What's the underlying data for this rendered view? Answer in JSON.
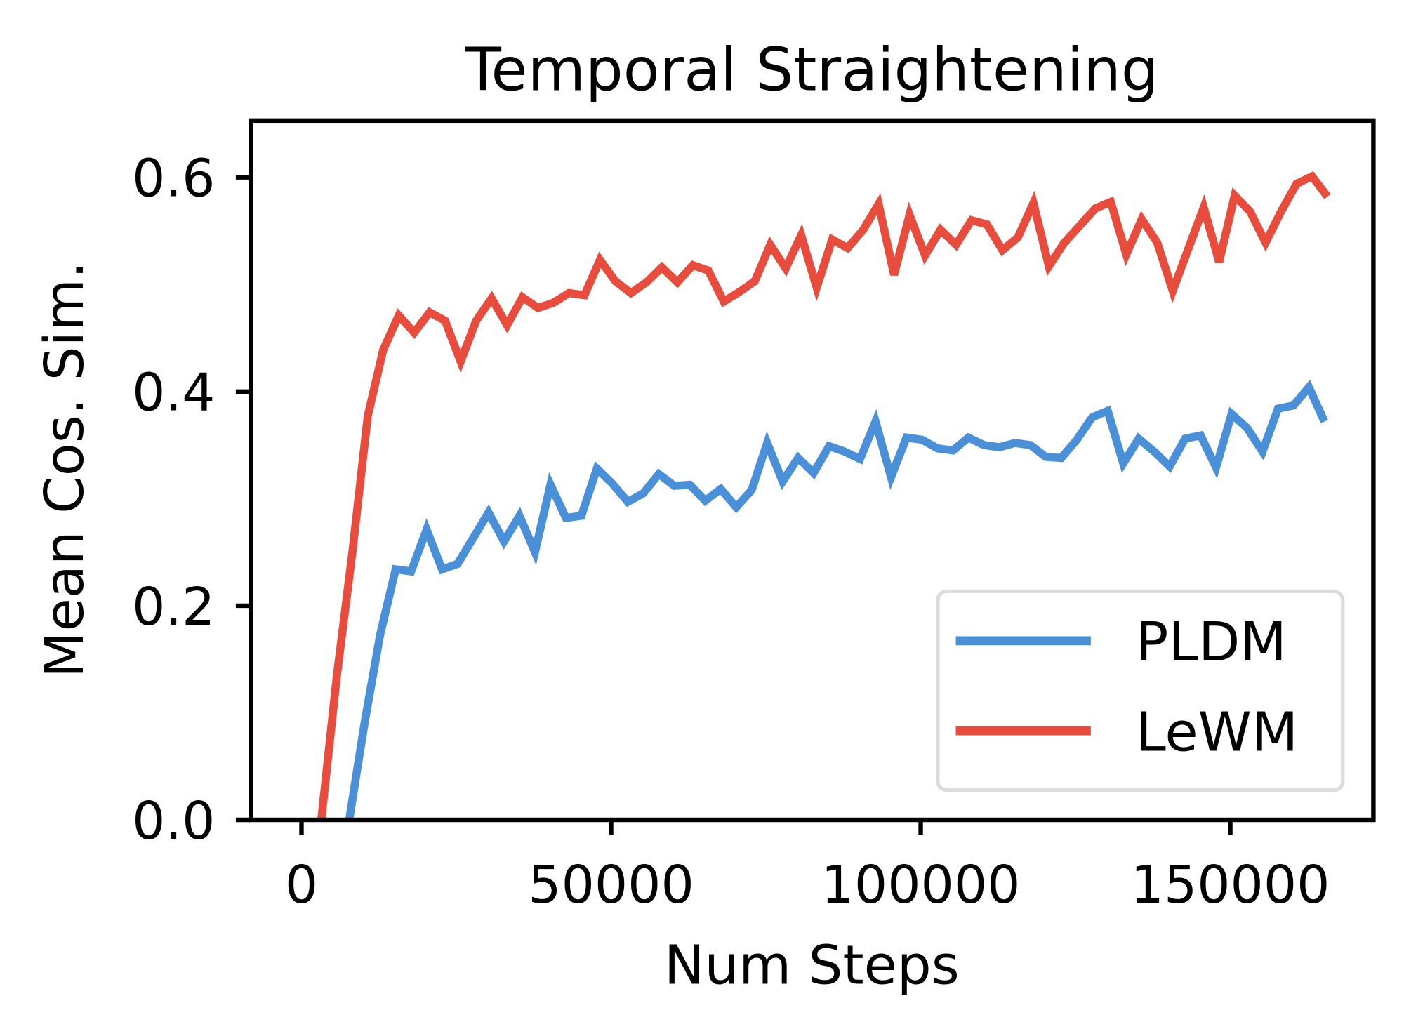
{
  "chart_data": {
    "type": "line",
    "title": "Temporal Straightening",
    "xlabel": "Num Steps",
    "ylabel": "Mean Cos. Sim.",
    "xlim": [
      -8140,
      173110
    ],
    "ylim": [
      0,
      0.653
    ],
    "xticks": [
      0,
      50000,
      100000,
      150000
    ],
    "xtick_labels": [
      "0",
      "50000",
      "100000",
      "150000"
    ],
    "yticks": [
      0.0,
      0.2,
      0.4,
      0.6
    ],
    "ytick_labels": [
      "0.0",
      "0.2",
      "0.4",
      "0.6"
    ],
    "grid": false,
    "legend_placement": "lower-right",
    "series": [
      {
        "name": "PLDM",
        "color": "#4a90d9",
        "x_start": 7700,
        "x_step": 2500,
        "values": [
          0.0,
          0.091,
          0.173,
          0.234,
          0.232,
          0.271,
          0.234,
          0.239,
          0.263,
          0.287,
          0.26,
          0.284,
          0.25,
          0.313,
          0.282,
          0.284,
          0.328,
          0.314,
          0.297,
          0.305,
          0.323,
          0.312,
          0.313,
          0.298,
          0.309,
          0.292,
          0.308,
          0.352,
          0.316,
          0.338,
          0.324,
          0.349,
          0.344,
          0.337,
          0.372,
          0.32,
          0.357,
          0.355,
          0.347,
          0.345,
          0.357,
          0.35,
          0.348,
          0.352,
          0.35,
          0.339,
          0.338,
          0.355,
          0.376,
          0.382,
          0.333,
          0.356,
          0.344,
          0.33,
          0.356,
          0.359,
          0.329,
          0.379,
          0.366,
          0.344,
          0.384,
          0.387,
          0.404,
          0.372
        ]
      },
      {
        "name": "LeWM",
        "color": "#e84c3d",
        "x_start": 3200,
        "x_step": 2500,
        "values": [
          0.0,
          0.134,
          0.249,
          0.377,
          0.439,
          0.471,
          0.455,
          0.474,
          0.466,
          0.428,
          0.466,
          0.487,
          0.462,
          0.488,
          0.478,
          0.483,
          0.492,
          0.49,
          0.523,
          0.503,
          0.492,
          0.502,
          0.516,
          0.502,
          0.518,
          0.513,
          0.484,
          0.493,
          0.503,
          0.537,
          0.515,
          0.546,
          0.497,
          0.542,
          0.534,
          0.551,
          0.575,
          0.509,
          0.565,
          0.527,
          0.551,
          0.537,
          0.56,
          0.556,
          0.532,
          0.544,
          0.576,
          0.517,
          0.539,
          0.555,
          0.571,
          0.577,
          0.528,
          0.561,
          0.539,
          0.494,
          0.533,
          0.572,
          0.521,
          0.583,
          0.568,
          0.539,
          0.568,
          0.594,
          0.601,
          0.582
        ]
      }
    ]
  }
}
